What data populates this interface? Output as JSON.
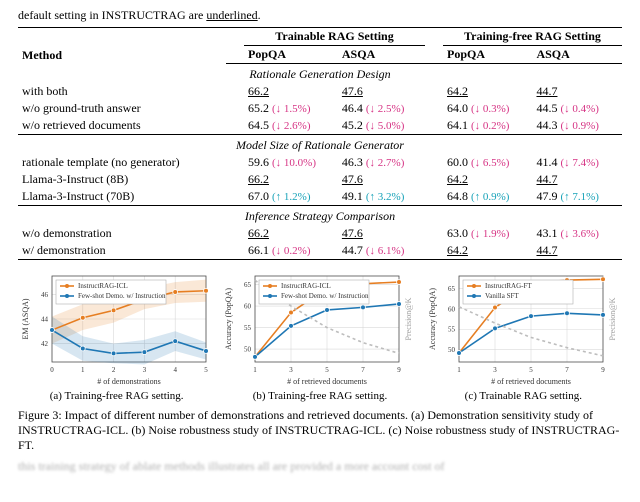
{
  "pretext": {
    "prefix": "default setting in I",
    "smallcaps": "NSTRUCT",
    "mid": "RAG are ",
    "underlined": "underlined",
    "suffix": "."
  },
  "table": {
    "header": {
      "method": "Method",
      "group_a": "Trainable RAG Setting",
      "group_b": "Training-free RAG Setting",
      "sub_a1": "PopQA",
      "sub_a2": "ASQA",
      "sub_b1": "PopQA",
      "sub_b2": "ASQA"
    },
    "sections": [
      {
        "title": "Rationale Generation Design",
        "rows": [
          {
            "method": "with both",
            "a1": {
              "v": "66.2",
              "u": true
            },
            "a1d": null,
            "a2": {
              "v": "47.6",
              "u": true
            },
            "a2d": null,
            "b1": {
              "v": "64.2",
              "u": true
            },
            "b1d": null,
            "b2": {
              "v": "44.7",
              "u": true
            },
            "b2d": null
          },
          {
            "method": "w/o ground-truth answer",
            "a1": {
              "v": "65.2"
            },
            "a1d": {
              "t": "(↓ 1.5%)",
              "c": "#d63384"
            },
            "a2": {
              "v": "46.4"
            },
            "a2d": {
              "t": "(↓ 2.5%)",
              "c": "#d63384"
            },
            "b1": {
              "v": "64.0"
            },
            "b1d": {
              "t": "(↓ 0.3%)",
              "c": "#d63384"
            },
            "b2": {
              "v": "44.5"
            },
            "b2d": {
              "t": "(↓ 0.4%)",
              "c": "#d63384"
            }
          },
          {
            "method": "w/o retrieved documents",
            "a1": {
              "v": "64.5"
            },
            "a1d": {
              "t": "(↓ 2.6%)",
              "c": "#d63384"
            },
            "a2": {
              "v": "45.2"
            },
            "a2d": {
              "t": "(↓ 5.0%)",
              "c": "#d63384"
            },
            "b1": {
              "v": "64.1"
            },
            "b1d": {
              "t": "(↓ 0.2%)",
              "c": "#d63384"
            },
            "b2": {
              "v": "44.3"
            },
            "b2d": {
              "t": "(↓ 0.9%)",
              "c": "#d63384"
            }
          }
        ]
      },
      {
        "title": "Model Size of Rationale Generator",
        "rows": [
          {
            "method": "rationale template (no generator)",
            "a1": {
              "v": "59.6"
            },
            "a1d": {
              "t": "(↓ 10.0%)",
              "c": "#d63384"
            },
            "a2": {
              "v": "46.3"
            },
            "a2d": {
              "t": "(↓ 2.7%)",
              "c": "#d63384"
            },
            "b1": {
              "v": "60.0"
            },
            "b1d": {
              "t": "(↓ 6.5%)",
              "c": "#d63384"
            },
            "b2": {
              "v": "41.4"
            },
            "b2d": {
              "t": "(↓ 7.4%)",
              "c": "#d63384"
            }
          },
          {
            "method": "Llama-3-Instruct (8B)",
            "a1": {
              "v": "66.2",
              "u": true
            },
            "a1d": null,
            "a2": {
              "v": "47.6",
              "u": true
            },
            "a2d": null,
            "b1": {
              "v": "64.2",
              "u": true
            },
            "b1d": null,
            "b2": {
              "v": "44.7",
              "u": true
            },
            "b2d": null
          },
          {
            "method": "Llama-3-Instruct (70B)",
            "a1": {
              "v": "67.0"
            },
            "a1d": {
              "t": "(↑ 1.2%)",
              "c": "#17a2b8"
            },
            "a2": {
              "v": "49.1"
            },
            "a2d": {
              "t": "(↑ 3.2%)",
              "c": "#17a2b8"
            },
            "b1": {
              "v": "64.8"
            },
            "b1d": {
              "t": "(↑ 0.9%)",
              "c": "#17a2b8"
            },
            "b2": {
              "v": "47.9"
            },
            "b2d": {
              "t": "(↑ 7.1%)",
              "c": "#17a2b8"
            }
          }
        ]
      },
      {
        "title": "Inference Strategy Comparison",
        "rows": [
          {
            "method": "w/o demonstration",
            "a1": {
              "v": "66.2",
              "u": true
            },
            "a1d": null,
            "a2": {
              "v": "47.6",
              "u": true
            },
            "a2d": null,
            "b1": {
              "v": "63.0"
            },
            "b1d": {
              "t": "(↓ 1.9%)",
              "c": "#d63384"
            },
            "b2": {
              "v": "43.1"
            },
            "b2d": {
              "t": "(↓ 3.6%)",
              "c": "#d63384"
            }
          },
          {
            "method": "w/ demonstration",
            "a1": {
              "v": "66.1"
            },
            "a1d": {
              "t": "(↓ 0.2%)",
              "c": "#d63384"
            },
            "a2": {
              "v": "44.7"
            },
            "a2d": {
              "t": "(↓ 6.1%)",
              "c": "#d63384"
            },
            "b1": {
              "v": "64.2",
              "u": true
            },
            "b1d": null,
            "b2": {
              "v": "44.7",
              "u": true
            },
            "b2d": null
          }
        ]
      }
    ]
  },
  "charts": {
    "width": 196,
    "height": 118,
    "legend_bg": "#ffffff",
    "legend_border": "#b0b0b0",
    "legend_fontsize": 7,
    "axis_fontsize": 8,
    "tick_fontsize": 7,
    "grid_color": "#d9d9d9",
    "axis_color": "#4d4d4d",
    "panels": [
      {
        "caption": "(a) Training-free RAG setting.",
        "xlabel": "# of demonstrations",
        "ylabel": "EM (ASQA)",
        "xticks": [
          0,
          1,
          2,
          3,
          4,
          5
        ],
        "yticks": [
          42,
          44,
          46
        ],
        "ylim": [
          40.5,
          47.5
        ],
        "series": [
          {
            "label": "InstructRAG-ICL",
            "color": "#e67e22",
            "marker": "circle",
            "x": [
              0,
              1,
              2,
              3,
              4,
              5
            ],
            "y": [
              43.1,
              44.1,
              44.7,
              45.6,
              46.2,
              46.3
            ],
            "band": [
              [
                42.0,
                44.2
              ],
              [
                43.1,
                45.2
              ],
              [
                43.7,
                45.7
              ],
              [
                44.8,
                46.5
              ],
              [
                45.3,
                47.0
              ],
              [
                45.4,
                47.2
              ]
            ]
          },
          {
            "label": "Few-shot Demo. w/ Instruction",
            "color": "#1f77b4",
            "marker": "circle",
            "x": [
              0,
              1,
              2,
              3,
              4,
              5
            ],
            "y": [
              43.1,
              41.6,
              41.2,
              41.3,
              42.2,
              41.4
            ],
            "band": [
              [
                42.0,
                44.2
              ],
              [
                40.6,
                42.6
              ],
              [
                40.4,
                42.0
              ],
              [
                40.3,
                42.3
              ],
              [
                41.4,
                43.0
              ],
              [
                40.7,
                42.1
              ]
            ]
          }
        ]
      },
      {
        "caption": "(b) Training-free RAG setting.",
        "xlabel": "# of retrieved documents",
        "ylabel": "Accuracy (PopQA)",
        "ylabel2": "Precision@K",
        "ylabel2_color": "#9e9e9e",
        "xticks": [
          1,
          3,
          5,
          7,
          9
        ],
        "yticks": [
          50,
          55,
          60,
          65
        ],
        "ylim": [
          47,
          67
        ],
        "series": [
          {
            "label": "InstructRAG-ICL",
            "color": "#e67e22",
            "marker": "circle",
            "x": [
              1,
              3,
              5,
              7,
              9
            ],
            "y": [
              48.2,
              58.5,
              64.2,
              65.2,
              65.6
            ]
          },
          {
            "label": "Few-shot Demo. w/ Instruction",
            "color": "#1f77b4",
            "marker": "circle",
            "x": [
              1,
              3,
              5,
              7,
              9
            ],
            "y": [
              48.2,
              55.4,
              59.1,
              59.7,
              60.5
            ]
          },
          {
            "label": "Precision@K",
            "color": "#bdbdbd",
            "dash": true,
            "x": [
              1,
              3,
              5,
              7,
              9
            ],
            "y": [
              66.0,
              60.0,
              55.0,
              51.5,
              49.0
            ]
          }
        ]
      },
      {
        "caption": "(c) Trainable RAG setting.",
        "xlabel": "# of retrieved documents",
        "ylabel": "Accuracy (PopQA)",
        "ylabel2": "Precision@K",
        "ylabel2_color": "#9e9e9e",
        "xticks": [
          1,
          3,
          5,
          7,
          9
        ],
        "yticks": [
          50,
          55,
          60,
          65
        ],
        "ylim": [
          47,
          68
        ],
        "series": [
          {
            "label": "InstructRAG-FT",
            "color": "#e67e22",
            "marker": "circle",
            "x": [
              1,
              3,
              5,
              7,
              9
            ],
            "y": [
              49.2,
              60.3,
              66.2,
              67.0,
              67.2
            ]
          },
          {
            "label": "Vanilla SFT",
            "color": "#1f77b4",
            "marker": "circle",
            "x": [
              1,
              3,
              5,
              7,
              9
            ],
            "y": [
              49.2,
              55.2,
              58.2,
              58.9,
              58.5
            ]
          },
          {
            "label": "Precision@K",
            "color": "#bdbdbd",
            "dash": true,
            "x": [
              1,
              3,
              5,
              7,
              9
            ],
            "y": [
              60.5,
              56.5,
              53.0,
              50.5,
              48.5
            ]
          }
        ]
      }
    ]
  },
  "figcaption": {
    "prefix": "Figure 3: Impact of different number of demonstrations and retrieved documents. (a) Demonstration sensitivity study of I",
    "smallcaps1": "NSTRUCT",
    "mid1": "RAG-ICL. (b) Noise robustness study of I",
    "smallcaps2": "NSTRUCT",
    "mid2": "RAG-ICL. (c) Noise robustness study of I",
    "smallcaps3": "NSTRUCT",
    "suffix": "RAG-FT."
  },
  "blurred": "this training strategy of ablate methods illustrates all are provided a more account cost of"
}
